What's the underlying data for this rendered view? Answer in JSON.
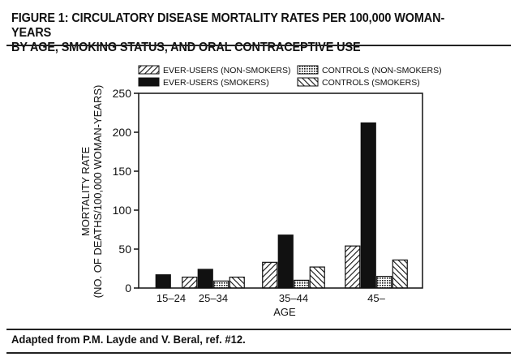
{
  "figure": {
    "title_line1": "FIGURE 1: CIRCULATORY DISEASE MORTALITY RATES PER 100,000 WOMAN-YEARS",
    "title_line2": "BY AGE, SMOKING STATUS, AND ORAL CONTRACEPTIVE USE",
    "source": "Adapted from P.M. Layde and V. Beral, ref. #12."
  },
  "chart_data": {
    "type": "bar",
    "xlabel": "AGE",
    "ylabel_line1": "MORTALITY RATE",
    "ylabel_line2": "(NO. OF DEATHS/100,000 WOMAN-YEARS)",
    "ylim": [
      0,
      250
    ],
    "yticks": [
      0,
      50,
      100,
      150,
      200,
      250
    ],
    "categories": [
      "15–24",
      "25–34",
      "35–44",
      "45–"
    ],
    "legend_placement": "top",
    "series": [
      {
        "name": "EVER-USERS (NON-SMOKERS)",
        "pattern": "diagonal",
        "values": [
          0,
          14,
          33,
          54
        ]
      },
      {
        "name": "EVER-USERS (SMOKERS)",
        "pattern": "solid",
        "values": [
          17,
          24,
          68,
          212
        ]
      },
      {
        "name": "CONTROLS (NON-SMOKERS)",
        "pattern": "dotted",
        "values": [
          0,
          9,
          10,
          15
        ]
      },
      {
        "name": "CONTROLS (SMOKERS)",
        "pattern": "backdiagonal",
        "values": [
          0,
          14,
          27,
          36
        ]
      }
    ]
  }
}
